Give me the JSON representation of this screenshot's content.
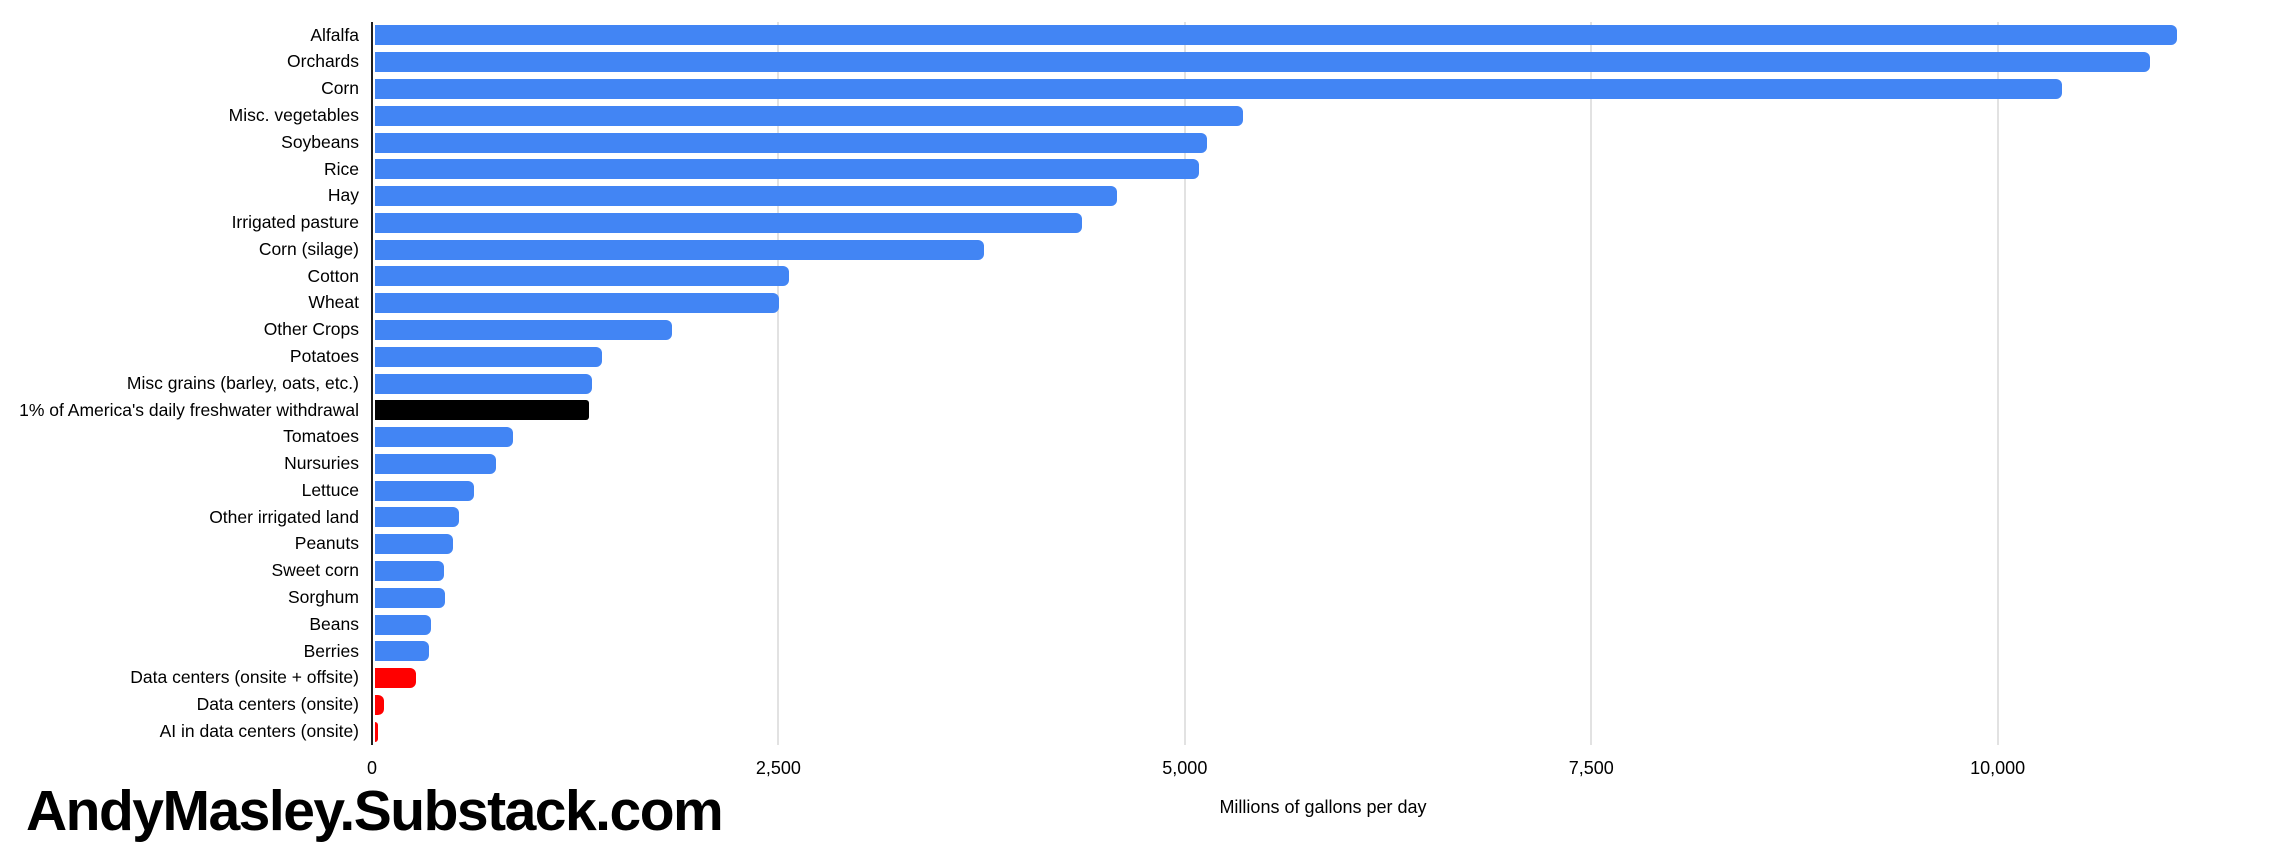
{
  "watermark": {
    "text": "AndyMasley.Substack.com"
  },
  "colors": {
    "bar_default_blue": "#4285F4",
    "bar_black": "#000000",
    "bar_red": "#FF0000",
    "gridline": "#E2E2E2",
    "axis_line": "#1F1F1F",
    "text": "#000000",
    "background": "#FFFFFF"
  },
  "chart_data": {
    "type": "bar",
    "orientation": "horizontal",
    "title": "",
    "xlabel": "Millions of gallons per day",
    "ylabel": "",
    "xlim": [
      0,
      11700
    ],
    "grid": true,
    "legend": false,
    "x_ticks": [
      {
        "label": "0",
        "value": 0
      },
      {
        "label": "2,500",
        "value": 2500
      },
      {
        "label": "5,000",
        "value": 5000
      },
      {
        "label": "7,500",
        "value": 7500
      },
      {
        "label": "10,000",
        "value": 10000
      }
    ],
    "categories": [
      "Alfalfa",
      "Orchards",
      "Corn",
      "Misc. vegetables",
      "Soybeans",
      "Rice",
      "Hay",
      "Irrigated pasture",
      "Corn (silage)",
      "Cotton",
      "Wheat",
      "Other Crops",
      "Potatoes",
      "Misc grains (barley, oats, etc.)",
      "1% of America's daily freshwater withdrawal",
      "Tomatoes",
      "Nursuries",
      "Lettuce",
      "Other irrigated land",
      "Peanuts",
      "Sweet corn",
      "Sorghum",
      "Beans",
      "Berries",
      "Data centers (onsite + offsite)",
      "Data centers (onsite)",
      "AI in data centers (onsite)"
    ],
    "values": [
      11090,
      10920,
      10380,
      5340,
      5120,
      5070,
      4570,
      4350,
      3750,
      2550,
      2490,
      1830,
      1400,
      1340,
      1320,
      850,
      750,
      615,
      520,
      480,
      430,
      435,
      345,
      335,
      255,
      60,
      20
    ],
    "bar_colors": [
      "#4285F4",
      "#4285F4",
      "#4285F4",
      "#4285F4",
      "#4285F4",
      "#4285F4",
      "#4285F4",
      "#4285F4",
      "#4285F4",
      "#4285F4",
      "#4285F4",
      "#4285F4",
      "#4285F4",
      "#4285F4",
      "#000000",
      "#4285F4",
      "#4285F4",
      "#4285F4",
      "#4285F4",
      "#4285F4",
      "#4285F4",
      "#4285F4",
      "#4285F4",
      "#4285F4",
      "#FF0000",
      "#FF0000",
      "#FF0000"
    ]
  }
}
